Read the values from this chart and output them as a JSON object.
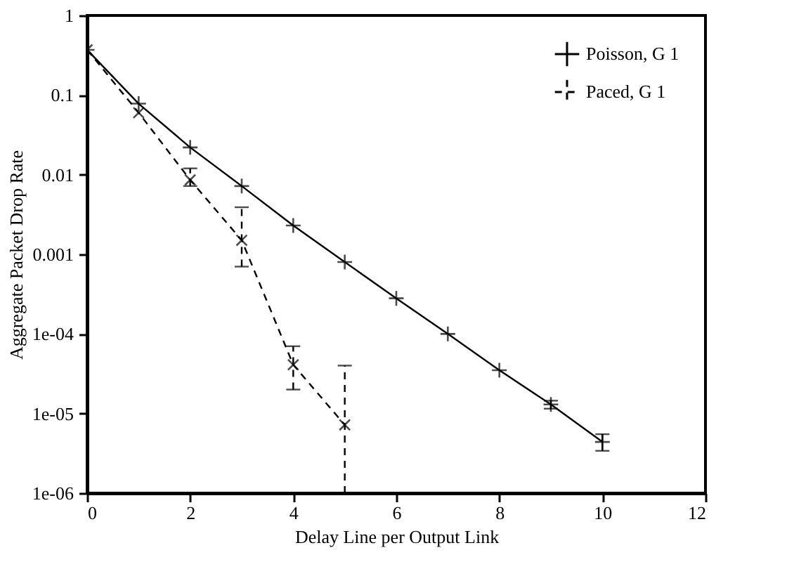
{
  "chart_data": {
    "type": "line",
    "xlabel": "Delay Line per Output Link",
    "ylabel": "Aggregate Packet Drop Rate",
    "xlim": [
      0,
      12
    ],
    "xticks": [
      0,
      2,
      4,
      6,
      8,
      10,
      12
    ],
    "ylim": [
      1e-06,
      1
    ],
    "log": "y",
    "yticks": [
      {
        "value": 1e-06,
        "label": "1e-06"
      },
      {
        "value": 1e-05,
        "label": "1e-05"
      },
      {
        "value": 0.0001,
        "label": "1e-04"
      },
      0.001,
      0.01,
      0.1,
      1
    ],
    "grid": false,
    "legend": "top right",
    "series": [
      {
        "name": "Poisson, G 1",
        "color": "#000000",
        "marker": "cross",
        "line_style": "solid",
        "x": [
          0,
          1,
          2,
          3,
          4,
          5,
          6,
          7,
          8,
          9,
          10
        ],
        "values": [
          0.37,
          0.078,
          0.022,
          0.0072,
          0.0023,
          0.0008,
          0.00028,
          0.0001,
          3.5e-05,
          1.3e-05,
          4.4e-06
        ],
        "errors": [
          null,
          null,
          null,
          null,
          null,
          null,
          null,
          null,
          null,
          [
            1.15e-05,
            1.45e-05
          ],
          [
            3.4e-06,
            5.5e-06
          ]
        ]
      },
      {
        "name": "Paced, G 1",
        "color": "#000000",
        "marker": "cross",
        "line_style": "dashed",
        "x": [
          0,
          1,
          2,
          3,
          4,
          5
        ],
        "values": [
          0.37,
          0.06,
          0.0086,
          0.0015,
          4.1e-05,
          7.2e-06
        ],
        "errors": [
          null,
          null,
          [
            0.0072,
            0.012
          ],
          [
            0.0007,
            0.0039
          ],
          [
            2e-05,
            7e-05
          ],
          [
            1e-06,
            4e-05
          ]
        ]
      }
    ]
  }
}
